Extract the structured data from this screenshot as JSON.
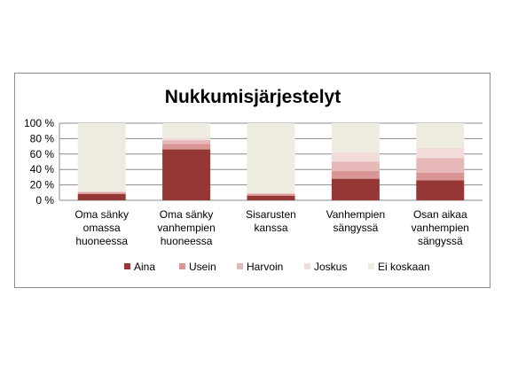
{
  "chart_data": {
    "type": "bar",
    "stacked": true,
    "title": "Nukkumisjärjestelyt",
    "xlabel": "",
    "ylabel": "",
    "ylim": [
      0,
      100
    ],
    "yticks": [
      "0 %",
      "20 %",
      "40 %",
      "60 %",
      "80 %",
      "100 %"
    ],
    "ytick_values": [
      0,
      20,
      40,
      60,
      80,
      100
    ],
    "grid": true,
    "legend_position": "bottom",
    "categories": [
      [
        "Oma sänky",
        "omassa",
        "huoneessa"
      ],
      [
        "Oma sänky",
        "vanhempien",
        "huoneessa"
      ],
      [
        "Sisarusten",
        "kanssa"
      ],
      [
        "Vanhempien",
        "sängyssä"
      ],
      [
        "Osan aikaa",
        "vanhempien",
        "sängyssä"
      ]
    ],
    "series": [
      {
        "name": "Aina",
        "color": "#953735",
        "values": [
          8,
          66,
          6,
          28,
          26
        ]
      },
      {
        "name": "Usein",
        "color": "#d99694",
        "values": [
          2,
          7,
          2,
          10,
          10
        ]
      },
      {
        "name": "Harvoin",
        "color": "#e6b9b8",
        "values": [
          1,
          5,
          1,
          12,
          19
        ]
      },
      {
        "name": "Joskus",
        "color": "#f2dcdb",
        "values": [
          1,
          3,
          1,
          12,
          13
        ]
      },
      {
        "name": "Ei koskaan",
        "color": "#eeece1",
        "values": [
          88,
          19,
          90,
          38,
          32
        ]
      }
    ]
  }
}
